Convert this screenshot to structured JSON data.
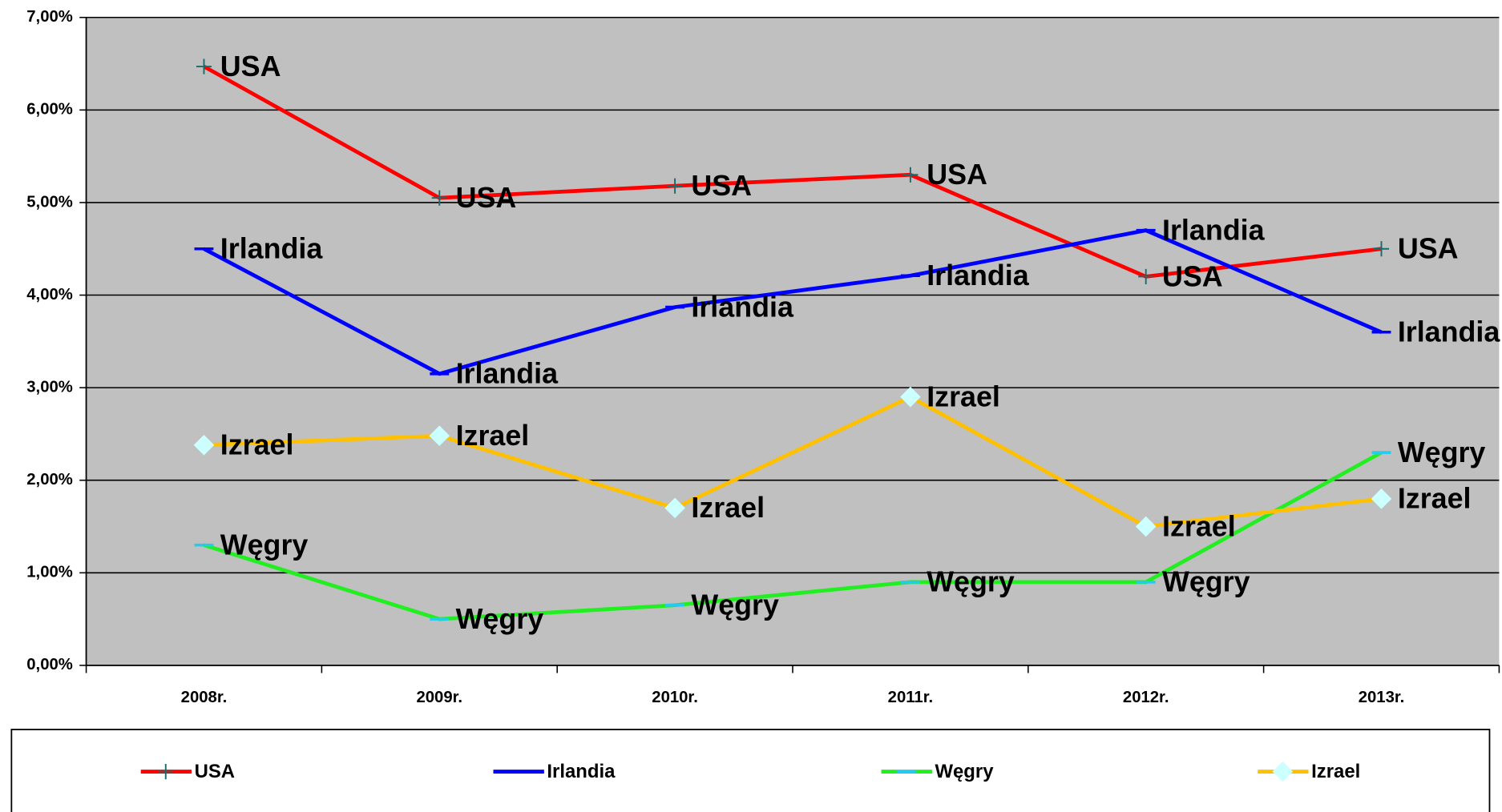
{
  "chart_data": {
    "type": "line",
    "categories": [
      "2008r.",
      "2009r.",
      "2010r.",
      "2011r.",
      "2012r.",
      "2013r."
    ],
    "series": [
      {
        "name": "USA",
        "color": "#ff0000",
        "marker": "plus",
        "marker_color": "#1a6b6b",
        "values": [
          6.47,
          5.05,
          5.18,
          5.3,
          4.2,
          4.5
        ]
      },
      {
        "name": "Irlandia",
        "color": "#0000ff",
        "marker": "dash",
        "marker_color": "#0000ff",
        "values": [
          4.5,
          3.15,
          3.87,
          4.21,
          4.7,
          3.6
        ]
      },
      {
        "name": "Węgry",
        "color": "#22ee22",
        "marker": "dash",
        "marker_color": "#22ccee",
        "values": [
          1.3,
          0.5,
          0.65,
          0.9,
          0.9,
          2.3
        ]
      },
      {
        "name": "Izrael",
        "color": "#ffc000",
        "marker": "diamond",
        "marker_color": "#ccffff",
        "values": [
          2.38,
          2.48,
          1.7,
          2.9,
          1.5,
          1.8
        ]
      }
    ],
    "ylim": [
      0,
      7
    ],
    "yticks": [
      {
        "value": 0,
        "label": "0,00%"
      },
      {
        "value": 1,
        "label": "1,00%"
      },
      {
        "value": 2,
        "label": "2,00%"
      },
      {
        "value": 3,
        "label": "3,00%"
      },
      {
        "value": 4,
        "label": "4,00%"
      },
      {
        "value": 5,
        "label": "5,00%"
      },
      {
        "value": 6,
        "label": "6,00%"
      },
      {
        "value": 7,
        "label": "7,00%"
      }
    ],
    "grid": true,
    "plot_background": "#c0c0c0",
    "legend": "bottom",
    "data_labels": "series_name"
  }
}
